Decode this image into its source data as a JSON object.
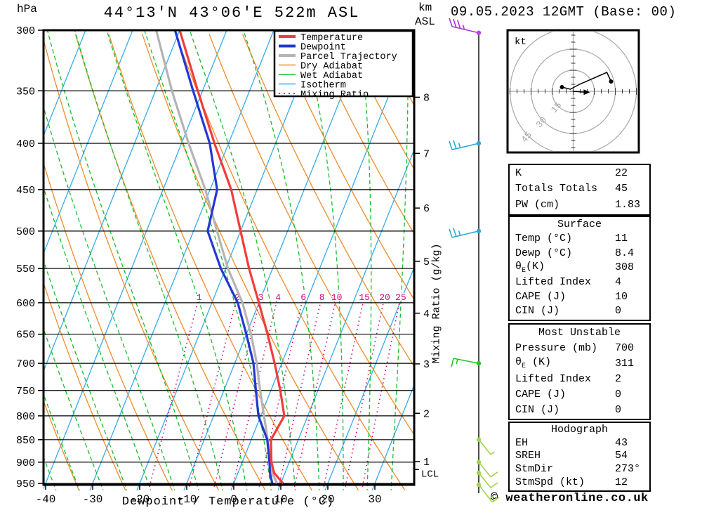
{
  "header": {
    "station": "44°13'N 43°06'E 522m ASL",
    "datetime": "09.05.2023 12GMT (Base: 00)",
    "pressure_unit": "hPa",
    "altitude_unit_line1": "km",
    "altitude_unit_line2": "ASL"
  },
  "plot": {
    "pressure_ticks": [
      300,
      350,
      400,
      450,
      500,
      550,
      600,
      650,
      700,
      750,
      800,
      850,
      900,
      950
    ],
    "temp_ticks": [
      -40,
      -30,
      -20,
      -10,
      0,
      10,
      20,
      30
    ],
    "x_axis_label": "Dewpoint / Temperature (°C)",
    "km_ticks": [
      8,
      7,
      6,
      5,
      4,
      3,
      2,
      1
    ],
    "lcl_label": "LCL",
    "mixing_ratio_axis_label": "Mixing Ratio (g/kg)",
    "mixing_ratio_values": [
      1,
      2,
      3,
      4,
      6,
      8,
      10,
      15,
      20,
      25
    ]
  },
  "legend": [
    {
      "label": "Temperature",
      "color": "#f23c3c",
      "width": 4,
      "dotted": false
    },
    {
      "label": "Dewpoint",
      "color": "#2238d4",
      "width": 4,
      "dotted": false
    },
    {
      "label": "Parcel Trajectory",
      "color": "#b4b4b4",
      "width": 4,
      "dotted": false
    },
    {
      "label": "Dry Adiabat",
      "color": "#ef8c28",
      "width": 1.5,
      "dotted": false
    },
    {
      "label": "Wet Adiabat",
      "color": "#17bd2b",
      "width": 1.5,
      "dotted": false
    },
    {
      "label": "Isotherm",
      "color": "#35acec",
      "width": 1.5,
      "dotted": false
    },
    {
      "label": "Mixing Ratio",
      "color": "#d4007d",
      "width": 2,
      "dotted": true
    }
  ],
  "colors": {
    "temperature": "#f23c3c",
    "dewpoint": "#2238d4",
    "parcel": "#b4b4b4",
    "dry_adiabat": "#ef8c28",
    "wet_adiabat": "#17bd2b",
    "isotherm": "#35acec",
    "mixing_ratio": "#d4007d",
    "grid": "#000000",
    "hodo_ring": "#a8a8a8"
  },
  "chart_data": {
    "type": "skewt-logp",
    "temperature_profile": [
      {
        "p": 300,
        "t": -50
      },
      {
        "p": 350,
        "t": -41
      },
      {
        "p": 400,
        "t": -33
      },
      {
        "p": 450,
        "t": -25.5
      },
      {
        "p": 500,
        "t": -20
      },
      {
        "p": 550,
        "t": -15
      },
      {
        "p": 600,
        "t": -10
      },
      {
        "p": 650,
        "t": -5.5
      },
      {
        "p": 700,
        "t": -1.5
      },
      {
        "p": 750,
        "t": 2
      },
      {
        "p": 800,
        "t": 5
      },
      {
        "p": 850,
        "t": 4.2
      },
      {
        "p": 900,
        "t": 6.2
      },
      {
        "p": 925,
        "t": 7.7
      },
      {
        "p": 950,
        "t": 10.5
      }
    ],
    "dewpoint_profile": [
      {
        "p": 300,
        "t": -51
      },
      {
        "p": 350,
        "t": -42
      },
      {
        "p": 400,
        "t": -34
      },
      {
        "p": 450,
        "t": -28.5
      },
      {
        "p": 500,
        "t": -27
      },
      {
        "p": 550,
        "t": -21
      },
      {
        "p": 600,
        "t": -14.5
      },
      {
        "p": 650,
        "t": -10
      },
      {
        "p": 700,
        "t": -6
      },
      {
        "p": 750,
        "t": -3.2
      },
      {
        "p": 800,
        "t": -0.5
      },
      {
        "p": 850,
        "t": 3.4
      },
      {
        "p": 900,
        "t": 5.8
      },
      {
        "p": 925,
        "t": 6.8
      },
      {
        "p": 950,
        "t": 8.2
      }
    ],
    "parcel_profile": [
      {
        "p": 300,
        "t": -55
      },
      {
        "p": 350,
        "t": -46.5
      },
      {
        "p": 400,
        "t": -38.5
      },
      {
        "p": 450,
        "t": -31
      },
      {
        "p": 500,
        "t": -25
      },
      {
        "p": 550,
        "t": -19.5
      },
      {
        "p": 600,
        "t": -13.5
      },
      {
        "p": 650,
        "t": -9
      },
      {
        "p": 700,
        "t": -5.3
      },
      {
        "p": 750,
        "t": -2.3
      },
      {
        "p": 800,
        "t": 0.7
      },
      {
        "p": 850,
        "t": 3.5
      },
      {
        "p": 900,
        "t": 6
      },
      {
        "p": 925,
        "t": 7.3
      },
      {
        "p": 950,
        "t": 9.2
      }
    ],
    "lcl_pressure": 917,
    "wind_barbs": [
      {
        "p": 302,
        "color": "#a832dc",
        "dot": "#c83ce8",
        "staff": [
          -38,
          -9
        ],
        "full": 3,
        "half": true,
        "tick": [
          -4,
          -12
        ]
      },
      {
        "p": 400,
        "color": "#2da5dd",
        "dot": "#2da5dd",
        "staff": [
          -38,
          9
        ],
        "full": 2,
        "half": true,
        "tick": [
          -4,
          -12
        ]
      },
      {
        "p": 500,
        "color": "#2da5dd",
        "dot": "#2da5dd",
        "staff": [
          -38,
          9
        ],
        "full": 2,
        "half": true,
        "tick": [
          -4,
          -12
        ]
      },
      {
        "p": 700,
        "color": "#20c820",
        "dot": "#20c820",
        "staff": [
          -36,
          -7
        ],
        "full": 1,
        "half": true,
        "tick": [
          -3,
          12
        ]
      },
      {
        "p": 850,
        "color": "#a2d44e",
        "dot": "#a2d44e",
        "staff": [
          17,
          21
        ],
        "full": 0,
        "half": true,
        "tick": [
          10,
          -7
        ]
      },
      {
        "p": 900,
        "color": "#a2d44e",
        "dot": "#a2d44e",
        "staff": [
          17,
          21
        ],
        "full": 1,
        "half": false,
        "tick": [
          10,
          -7
        ]
      },
      {
        "p": 925,
        "color": "#a2d44e",
        "dot": "#a2d44e",
        "staff": [
          17,
          21
        ],
        "full": 1,
        "half": false,
        "tick": [
          10,
          -7
        ]
      },
      {
        "p": 953,
        "color": "#a2d44e",
        "dot": "#a2d44e",
        "staff": [
          19,
          25
        ],
        "full": 1,
        "half": true,
        "tick": [
          10,
          -7
        ]
      }
    ],
    "hodograph": {
      "unit": "kt",
      "rings_kt": [
        15,
        30,
        45
      ],
      "trace_uv_kt": [
        [
          -8,
          3
        ],
        [
          -2,
          1.5
        ],
        [
          4.5,
          5
        ],
        [
          24,
          13.5
        ],
        [
          27,
          7
        ]
      ],
      "endpoint_dots": [
        0,
        4
      ],
      "storm_motion": {
        "dir_deg": 273,
        "speed_kt": 12
      }
    }
  },
  "tables": [
    {
      "rows": [
        {
          "l": "K",
          "v": "22"
        },
        {
          "l": "Totals Totals",
          "v": "45"
        },
        {
          "l": "PW (cm)",
          "v": "1.83"
        }
      ]
    },
    {
      "title": "Surface",
      "rows": [
        {
          "l": "Temp (°C)",
          "v": "11"
        },
        {
          "l": "Dewp (°C)",
          "v": "8.4"
        },
        {
          "l": "θ",
          "sub": "E",
          "rest": "(K)",
          "v": "308"
        },
        {
          "l": "Lifted Index",
          "v": "4"
        },
        {
          "l": "CAPE (J)",
          "v": "10"
        },
        {
          "l": "CIN (J)",
          "v": "0"
        }
      ]
    },
    {
      "title": "Most Unstable",
      "rows": [
        {
          "l": "Pressure (mb)",
          "v": "700"
        },
        {
          "l": "θ",
          "sub": "E",
          "rest": " (K)",
          "v": "311"
        },
        {
          "l": "Lifted Index",
          "v": "2"
        },
        {
          "l": "CAPE (J)",
          "v": "0"
        },
        {
          "l": "CIN (J)",
          "v": "0"
        }
      ]
    },
    {
      "title": "Hodograph",
      "rows": [
        {
          "l": "EH",
          "v": "43"
        },
        {
          "l": "SREH",
          "v": "54"
        },
        {
          "l": "StmDir",
          "v": "273°"
        },
        {
          "l": "StmSpd (kt)",
          "v": "12"
        }
      ]
    }
  ],
  "copyright": "© weatheronline.co.uk"
}
